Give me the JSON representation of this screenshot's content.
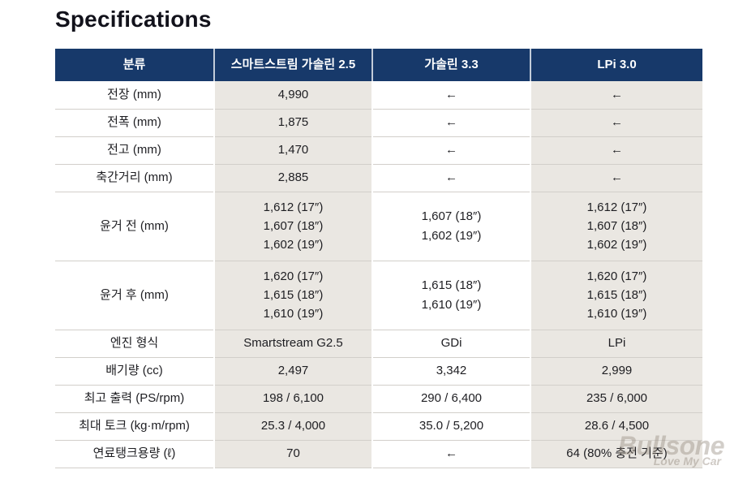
{
  "page": {
    "title": "Specifications"
  },
  "table": {
    "columns": [
      "분류",
      "스마트스트림 가솔린 2.5",
      "가솔린 3.3",
      "LPi 3.0"
    ],
    "rows": [
      {
        "label": "전장 (mm)",
        "values": [
          "4,990",
          "←",
          "←"
        ]
      },
      {
        "label": "전폭 (mm)",
        "values": [
          "1,875",
          "←",
          "←"
        ]
      },
      {
        "label": "전고 (mm)",
        "values": [
          "1,470",
          "←",
          "←"
        ]
      },
      {
        "label": "축간거리 (mm)",
        "values": [
          "2,885",
          "←",
          "←"
        ]
      },
      {
        "label": "윤거 전 (mm)",
        "values": [
          "1,612 (17″)\n1,607 (18″)\n1,602 (19″)",
          "1,607 (18″)\n1,602 (19″)",
          "1,612 (17″)\n1,607 (18″)\n1,602 (19″)"
        ]
      },
      {
        "label": "윤거 후 (mm)",
        "values": [
          "1,620 (17″)\n1,615 (18″)\n1,610 (19″)",
          "1,615 (18″)\n1,610 (19″)",
          "1,620 (17″)\n1,615 (18″)\n1,610 (19″)"
        ]
      },
      {
        "label": "엔진 형식",
        "values": [
          "Smartstream G2.5",
          "GDi",
          "LPi"
        ]
      },
      {
        "label": "배기량 (cc)",
        "values": [
          "2,497",
          "3,342",
          "2,999"
        ]
      },
      {
        "label": "최고 출력 (PS/rpm)",
        "values": [
          "198 / 6,100",
          "290 / 6,400",
          "235 / 6,000"
        ]
      },
      {
        "label": "최대 토크 (kg·m/rpm)",
        "values": [
          "25.3 / 4,000",
          "35.0 / 5,200",
          "28.6 / 4,500"
        ]
      },
      {
        "label": "연료탱크용량 (ℓ)",
        "values": [
          "70",
          "←",
          "64 (80% 충전 기준)"
        ]
      }
    ]
  },
  "watermark": {
    "brand": "Bullsone",
    "tagline": "Love My Car"
  },
  "colors": {
    "header_bg": "#17396a",
    "header_text": "#ffffff",
    "alt_column_bg": "#eae7e2",
    "row_divider": "#d2cfca",
    "body_text": "#1e1e22",
    "watermark_text": "#948a7e"
  }
}
